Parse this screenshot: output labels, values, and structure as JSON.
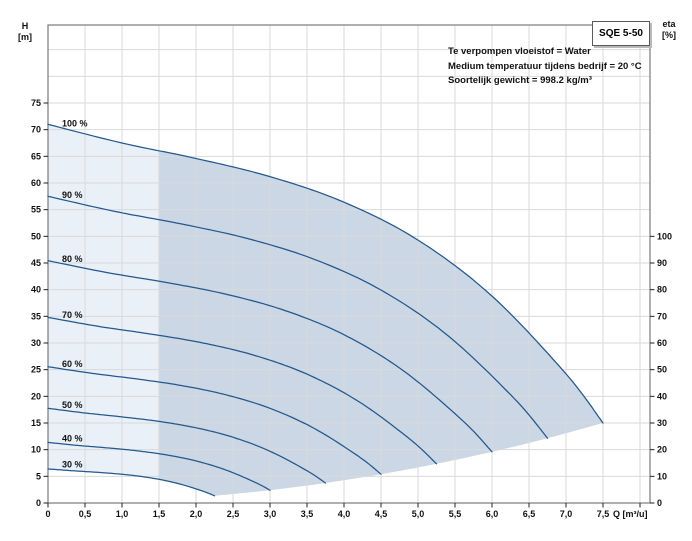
{
  "header": {
    "pump_model": "SQE 5-50",
    "conditions": [
      "Te verpompen vloeistof = Water",
      "Medium temperatuur tijdens bedrijf = 20 °C",
      "Soortelijk gewicht = 998.2 kg/m³"
    ]
  },
  "axes": {
    "left": {
      "label_line1": "H",
      "label_line2": "[m]",
      "ticks": [
        0,
        5,
        10,
        15,
        20,
        25,
        30,
        35,
        40,
        45,
        50,
        55,
        60,
        65,
        70,
        75
      ]
    },
    "right": {
      "label_line1": "eta",
      "label_line2": "[%]",
      "ticks": [
        0,
        10,
        20,
        30,
        40,
        50,
        60,
        70,
        80,
        90,
        100
      ]
    },
    "bottom": {
      "unit_label": "Q [m³/u]",
      "tick_values": [
        0,
        0.5,
        1,
        1.5,
        2,
        2.5,
        3,
        3.5,
        4,
        4.5,
        5,
        5.5,
        6,
        6.5,
        7,
        7.5,
        8
      ],
      "tick_labels": [
        "0",
        "0,5",
        "1,0",
        "1,5",
        "2,0",
        "2,5",
        "3,0",
        "3,5",
        "4,0",
        "4,5",
        "5,0",
        "5,5",
        "6,0",
        "6,5",
        "7,0",
        "7,5",
        ""
      ]
    }
  },
  "chart_data": {
    "type": "line",
    "title": "SQE 5-50 pump performance curves (H vs Q at variable speed)",
    "xlabel": "Q [m³/u]",
    "ylabel_left": "H [m]",
    "ylabel_right": "eta [%]",
    "xlim": [
      0,
      8.14
    ],
    "ylim_left": [
      0,
      89.6
    ],
    "eta_right_max": 100,
    "grid": "on",
    "x_grid_step": 0.5,
    "y_grid_step_m": 5,
    "series": [
      {
        "name": "100 %",
        "points": [
          [
            0,
            71
          ],
          [
            1,
            67.5
          ],
          [
            2,
            64.6
          ],
          [
            3,
            61.2
          ],
          [
            4,
            56.4
          ],
          [
            5,
            49.3
          ],
          [
            6,
            38.8
          ],
          [
            7,
            24.2
          ],
          [
            7.5,
            15
          ]
        ]
      },
      {
        "name": "90 %",
        "points": [
          [
            0,
            57.51
          ],
          [
            0.9,
            54.68
          ],
          [
            1.8,
            52.33
          ],
          [
            2.7,
            49.57
          ],
          [
            3.6,
            45.68
          ],
          [
            4.5,
            39.93
          ],
          [
            5.4,
            31.43
          ],
          [
            6.3,
            19.6
          ],
          [
            6.75,
            12.15
          ]
        ]
      },
      {
        "name": "80 %",
        "points": [
          [
            0,
            45.44
          ],
          [
            0.8,
            43.2
          ],
          [
            1.6,
            41.34
          ],
          [
            2.4,
            39.17
          ],
          [
            3.2,
            36.1
          ],
          [
            4,
            31.55
          ],
          [
            4.8,
            24.83
          ],
          [
            5.6,
            15.49
          ],
          [
            6,
            9.6
          ]
        ]
      },
      {
        "name": "70 %",
        "points": [
          [
            0,
            34.79
          ],
          [
            0.7,
            33.08
          ],
          [
            1.4,
            31.65
          ],
          [
            2.1,
            29.99
          ],
          [
            2.8,
            27.64
          ],
          [
            3.5,
            24.16
          ],
          [
            4.2,
            19.01
          ],
          [
            4.9,
            11.86
          ],
          [
            5.25,
            7.35
          ]
        ]
      },
      {
        "name": "60 %",
        "points": [
          [
            0,
            25.56
          ],
          [
            0.6,
            24.3
          ],
          [
            1.2,
            23.26
          ],
          [
            1.8,
            22.03
          ],
          [
            2.4,
            20.3
          ],
          [
            3,
            17.75
          ],
          [
            3.6,
            13.97
          ],
          [
            4.2,
            8.71
          ],
          [
            4.5,
            5.4
          ]
        ]
      },
      {
        "name": "50 %",
        "points": [
          [
            0,
            17.75
          ],
          [
            0.5,
            16.88
          ],
          [
            1,
            16.15
          ],
          [
            1.5,
            15.3
          ],
          [
            2,
            14.1
          ],
          [
            2.5,
            12.33
          ],
          [
            3,
            9.7
          ],
          [
            3.5,
            6.05
          ],
          [
            3.75,
            3.75
          ]
        ]
      },
      {
        "name": "40 %",
        "points": [
          [
            0,
            11.36
          ],
          [
            0.4,
            10.8
          ],
          [
            0.8,
            10.34
          ],
          [
            1.2,
            9.79
          ],
          [
            1.6,
            9.02
          ],
          [
            2,
            7.89
          ],
          [
            2.4,
            6.21
          ],
          [
            2.8,
            3.87
          ],
          [
            3,
            2.4
          ]
        ]
      },
      {
        "name": "30 %",
        "points": [
          [
            0,
            6.39
          ],
          [
            0.3,
            6.08
          ],
          [
            0.6,
            5.81
          ],
          [
            0.9,
            5.51
          ],
          [
            1.2,
            5.08
          ],
          [
            1.5,
            4.44
          ],
          [
            1.8,
            3.49
          ],
          [
            2.1,
            2.18
          ],
          [
            2.25,
            1.35
          ]
        ]
      }
    ],
    "operating_region": {
      "light_q_range": [
        0,
        1.5
      ],
      "dark_q_range": [
        1.5,
        7.5
      ],
      "lower_boundary": [
        [
          2.25,
          1.35
        ],
        [
          3,
          2.4
        ],
        [
          3.75,
          3.75
        ],
        [
          4.5,
          5.4
        ],
        [
          5.25,
          7.35
        ],
        [
          6,
          9.6
        ],
        [
          6.75,
          12.15
        ],
        [
          7.5,
          15
        ]
      ]
    }
  },
  "colors": {
    "curve": "#24578C",
    "fill_light": "#E9F0F8",
    "fill_dark": "#CBD7E4",
    "grid": "#D8DADD",
    "frame": "#7A7A7A",
    "tick": "#222222",
    "text": "#111111"
  }
}
